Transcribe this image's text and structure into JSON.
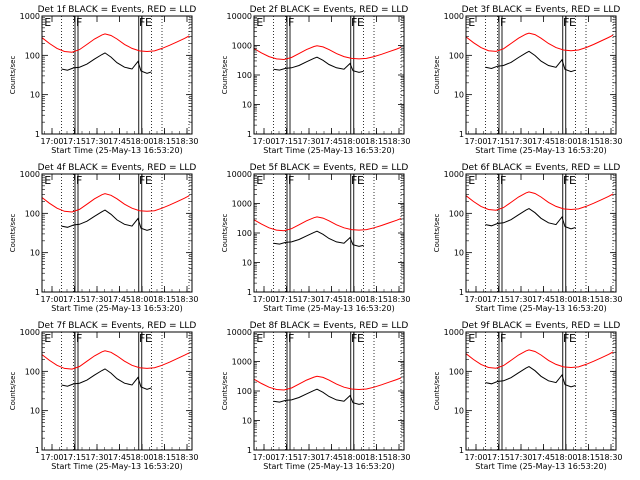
{
  "chart_data": [
    {
      "title": "Det 1f BLACK = Events, RED = LLD",
      "type": "line",
      "xlabel": "Start Time (25-May-13 16:53:20)",
      "ylabel": "Counts/sec",
      "yscale": "log",
      "ylim": [
        1,
        1000
      ]
    },
    {
      "title": "Det 2f BLACK = Events, RED = LLD",
      "type": "line",
      "xlabel": "Start Time (25-May-13 16:53:20)",
      "ylabel": "Counts/sec",
      "yscale": "log",
      "ylim": [
        1,
        10000
      ]
    },
    {
      "title": "Det 3f BLACK = Events, RED = LLD",
      "type": "line",
      "xlabel": "Start Time (25-May-13 16:53:20)",
      "ylabel": "Counts/sec",
      "yscale": "log",
      "ylim": [
        1,
        1000
      ]
    },
    {
      "title": "Det 4f BLACK = Events, RED = LLD",
      "type": "line",
      "xlabel": "Start Time (25-May-13 16:53:20)",
      "ylabel": "Counts/sec",
      "yscale": "log",
      "ylim": [
        1,
        1000
      ]
    },
    {
      "title": "Det 5f BLACK = Events, RED = LLD",
      "type": "line",
      "xlabel": "Start Time (25-May-13 16:53:20)",
      "ylabel": "Counts/sec",
      "yscale": "log",
      "ylim": [
        1,
        10000
      ]
    },
    {
      "title": "Det 6f BLACK = Events, RED = LLD",
      "type": "line",
      "xlabel": "Start Time (25-May-13 16:53:20)",
      "ylabel": "Counts/sec",
      "yscale": "log",
      "ylim": [
        1,
        1000
      ]
    },
    {
      "title": "Det 7f BLACK = Events, RED = LLD",
      "type": "line",
      "xlabel": "Start Time (25-May-13 16:53:20)",
      "ylabel": "Counts/sec",
      "yscale": "log",
      "ylim": [
        1,
        1000
      ]
    },
    {
      "title": "Det 8f BLACK = Events, RED = LLD",
      "type": "line",
      "xlabel": "Start Time (25-May-13 16:53:20)",
      "ylabel": "Counts/sec",
      "yscale": "log",
      "ylim": [
        1,
        10000
      ]
    },
    {
      "title": "Det 9f BLACK = Events, RED = LLD",
      "type": "line",
      "xlabel": "Start Time (25-May-13 16:53:20)",
      "ylabel": "Counts/sec",
      "yscale": "log",
      "ylim": [
        1,
        1000
      ]
    }
  ],
  "shared": {
    "xtick_labels": [
      "17:00",
      "17:15",
      "17:30",
      "17:45",
      "18:00",
      "18:15",
      "18:30"
    ],
    "xtick_minutes": [
      6.67,
      21.67,
      36.67,
      51.67,
      66.67,
      81.67,
      96.67
    ],
    "xlim_minutes": [
      0,
      100
    ],
    "markers": [
      {
        "label": "E",
        "minute": 0.8
      },
      {
        "label": "F",
        "minute": 22.0
      },
      {
        "label": "F",
        "minute": 64.0
      },
      {
        "label": "E",
        "minute": 68.0
      }
    ],
    "dotted_minutes": [
      13.0,
      21.0,
      73.0,
      80.0,
      98.0
    ],
    "solid_minutes": [
      22.0,
      24.0,
      64.5,
      66.5
    ],
    "red_series_color": "#ff0000",
    "black_series_color": "#000000",
    "red_series": [
      {
        "minute": 0,
        "value": 280
      },
      {
        "minute": 5,
        "value": 200
      },
      {
        "minute": 10,
        "value": 150
      },
      {
        "minute": 15,
        "value": 125
      },
      {
        "minute": 20,
        "value": 120
      },
      {
        "minute": 25,
        "value": 140
      },
      {
        "minute": 30,
        "value": 190
      },
      {
        "minute": 35,
        "value": 260
      },
      {
        "minute": 40,
        "value": 330
      },
      {
        "minute": 42,
        "value": 350
      },
      {
        "minute": 46,
        "value": 320
      },
      {
        "minute": 50,
        "value": 260
      },
      {
        "minute": 55,
        "value": 190
      },
      {
        "minute": 60,
        "value": 150
      },
      {
        "minute": 65,
        "value": 130
      },
      {
        "minute": 70,
        "value": 125
      },
      {
        "minute": 75,
        "value": 130
      },
      {
        "minute": 80,
        "value": 150
      },
      {
        "minute": 85,
        "value": 180
      },
      {
        "minute": 90,
        "value": 220
      },
      {
        "minute": 95,
        "value": 270
      },
      {
        "minute": 98,
        "value": 310
      }
    ],
    "black_series": [
      {
        "minute": 13,
        "value": 45
      },
      {
        "minute": 17,
        "value": 42
      },
      {
        "minute": 21,
        "value": 48
      },
      {
        "minute": 25,
        "value": 50
      },
      {
        "minute": 30,
        "value": 60
      },
      {
        "minute": 35,
        "value": 80
      },
      {
        "minute": 40,
        "value": 105
      },
      {
        "minute": 42,
        "value": 115
      },
      {
        "minute": 46,
        "value": 90
      },
      {
        "minute": 50,
        "value": 65
      },
      {
        "minute": 55,
        "value": 50
      },
      {
        "minute": 60,
        "value": 45
      },
      {
        "minute": 64,
        "value": 70
      },
      {
        "minute": 66,
        "value": 40
      },
      {
        "minute": 70,
        "value": 35
      },
      {
        "minute": 73,
        "value": 38
      }
    ],
    "y_tick_labels_1000": [
      "1",
      "10",
      "100",
      "1000"
    ],
    "y_tick_labels_10000": [
      "1",
      "10",
      "100",
      "1000",
      "10000"
    ]
  }
}
